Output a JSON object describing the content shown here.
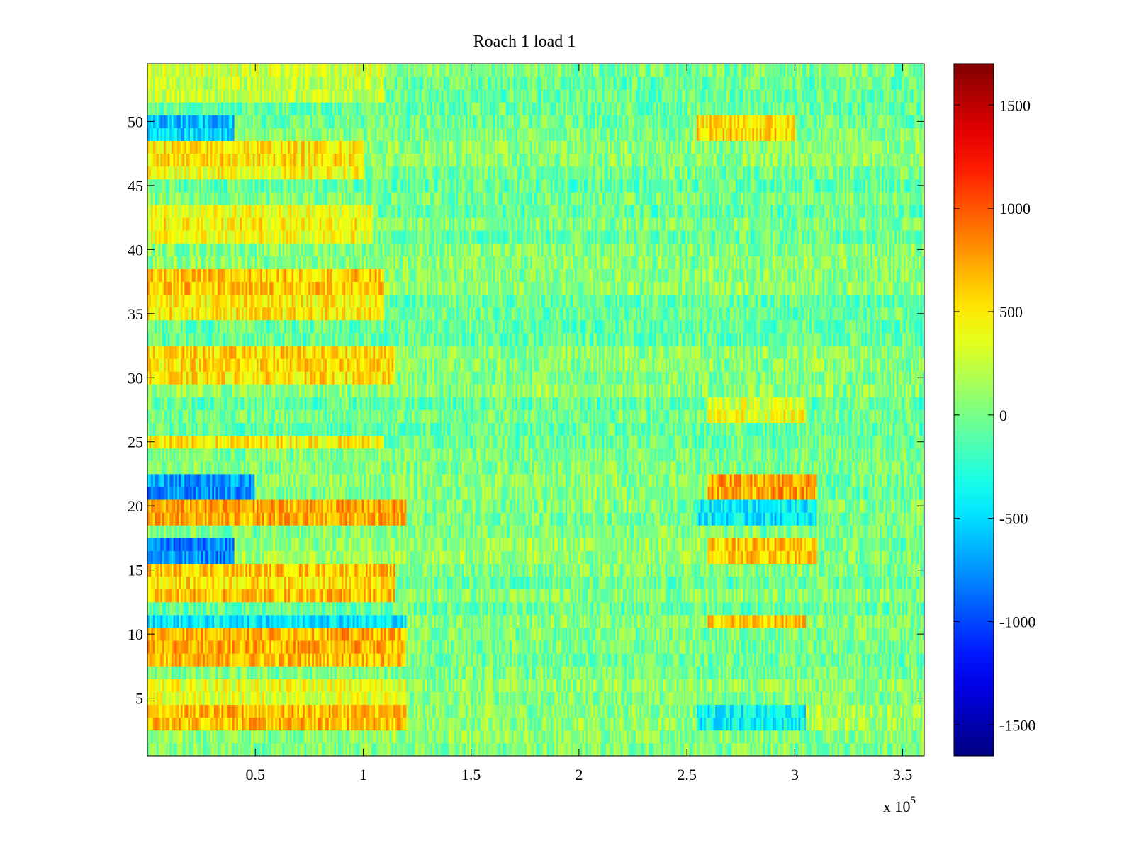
{
  "chart_data": {
    "type": "heatmap",
    "title": "Roach 1 load 1",
    "xlabel": "",
    "ylabel": "",
    "x_multiplier_label": "x 10",
    "x_multiplier_exponent": "5",
    "xlim": [
      0,
      3.6
    ],
    "ylim": [
      0.5,
      54.5
    ],
    "x_ticks": [
      0.5,
      1,
      1.5,
      2,
      2.5,
      3,
      3.5
    ],
    "x_tick_labels": [
      "0.5",
      "1",
      "1.5",
      "2",
      "2.5",
      "3",
      "3.5"
    ],
    "y_ticks": [
      5,
      10,
      15,
      20,
      25,
      30,
      35,
      40,
      45,
      50
    ],
    "y_tick_labels": [
      "5",
      "10",
      "15",
      "20",
      "25",
      "30",
      "35",
      "40",
      "45",
      "50"
    ],
    "colormap": "jet",
    "clim": [
      -1650,
      1700
    ],
    "colorbar_ticks": [
      1500,
      1000,
      500,
      0,
      -500,
      -1000,
      -1500
    ],
    "colorbar_tick_labels": [
      "1500",
      "1000",
      "500",
      "0",
      "-500",
      "-1000",
      "-1500"
    ],
    "rows": 54,
    "row_regions": [
      {
        "rows": [
          1,
          2
        ],
        "segments": [
          [
            0,
            3.6,
            0
          ]
        ]
      },
      {
        "rows": [
          3,
          4
        ],
        "segments": [
          [
            0,
            1.2,
            600
          ],
          [
            1.2,
            2.55,
            0
          ],
          [
            2.55,
            3.05,
            -450
          ],
          [
            3.05,
            3.6,
            100
          ]
        ]
      },
      {
        "rows": [
          5,
          6
        ],
        "segments": [
          [
            0,
            1.2,
            300
          ],
          [
            1.2,
            3.6,
            0
          ]
        ]
      },
      {
        "rows": [
          8,
          9,
          10
        ],
        "segments": [
          [
            0,
            1.2,
            700
          ],
          [
            1.2,
            3.6,
            0
          ]
        ]
      },
      {
        "rows": [
          11
        ],
        "segments": [
          [
            0,
            1.2,
            -500
          ],
          [
            1.2,
            2.6,
            0
          ],
          [
            2.6,
            3.05,
            550
          ],
          [
            3.05,
            3.6,
            0
          ]
        ]
      },
      {
        "rows": [
          13,
          14,
          15
        ],
        "segments": [
          [
            0,
            1.15,
            600
          ],
          [
            1.15,
            3.6,
            0
          ]
        ]
      },
      {
        "rows": [
          16,
          17
        ],
        "segments": [
          [
            0,
            0.4,
            -800
          ],
          [
            0.4,
            2.6,
            100
          ],
          [
            2.6,
            3.1,
            600
          ],
          [
            3.1,
            3.6,
            0
          ]
        ]
      },
      {
        "rows": [
          19,
          20
        ],
        "segments": [
          [
            0,
            1.2,
            700
          ],
          [
            1.2,
            2.55,
            0
          ],
          [
            2.55,
            3.1,
            -450
          ],
          [
            3.1,
            3.6,
            0
          ]
        ]
      },
      {
        "rows": [
          21,
          22
        ],
        "segments": [
          [
            0,
            0.5,
            -700
          ],
          [
            0.5,
            2.6,
            100
          ],
          [
            2.6,
            3.1,
            800
          ],
          [
            3.1,
            3.6,
            0
          ]
        ]
      },
      {
        "rows": [
          25
        ],
        "segments": [
          [
            0,
            1.1,
            550
          ],
          [
            1.1,
            3.6,
            0
          ]
        ]
      },
      {
        "rows": [
          27,
          28
        ],
        "segments": [
          [
            0,
            2.6,
            0
          ],
          [
            2.6,
            3.05,
            400
          ],
          [
            3.05,
            3.6,
            0
          ]
        ]
      },
      {
        "rows": [
          30,
          31,
          32
        ],
        "segments": [
          [
            0,
            1.15,
            500
          ],
          [
            1.15,
            3.6,
            0
          ]
        ]
      },
      {
        "rows": [
          35,
          36,
          37,
          38
        ],
        "segments": [
          [
            0,
            1.1,
            550
          ],
          [
            1.1,
            3.6,
            0
          ]
        ]
      },
      {
        "rows": [
          41,
          42,
          43
        ],
        "segments": [
          [
            0,
            1.05,
            450
          ],
          [
            1.05,
            3.6,
            0
          ]
        ]
      },
      {
        "rows": [
          46,
          47,
          48
        ],
        "segments": [
          [
            0,
            1.0,
            450
          ],
          [
            1.0,
            3.6,
            0
          ]
        ]
      },
      {
        "rows": [
          49,
          50
        ],
        "segments": [
          [
            0,
            0.4,
            -550
          ],
          [
            0.4,
            2.55,
            0
          ],
          [
            2.55,
            3.0,
            550
          ],
          [
            3.0,
            3.6,
            0
          ]
        ]
      },
      {
        "rows": [
          52,
          53,
          54
        ],
        "segments": [
          [
            0,
            1.1,
            300
          ],
          [
            1.1,
            3.6,
            0
          ]
        ]
      }
    ]
  }
}
